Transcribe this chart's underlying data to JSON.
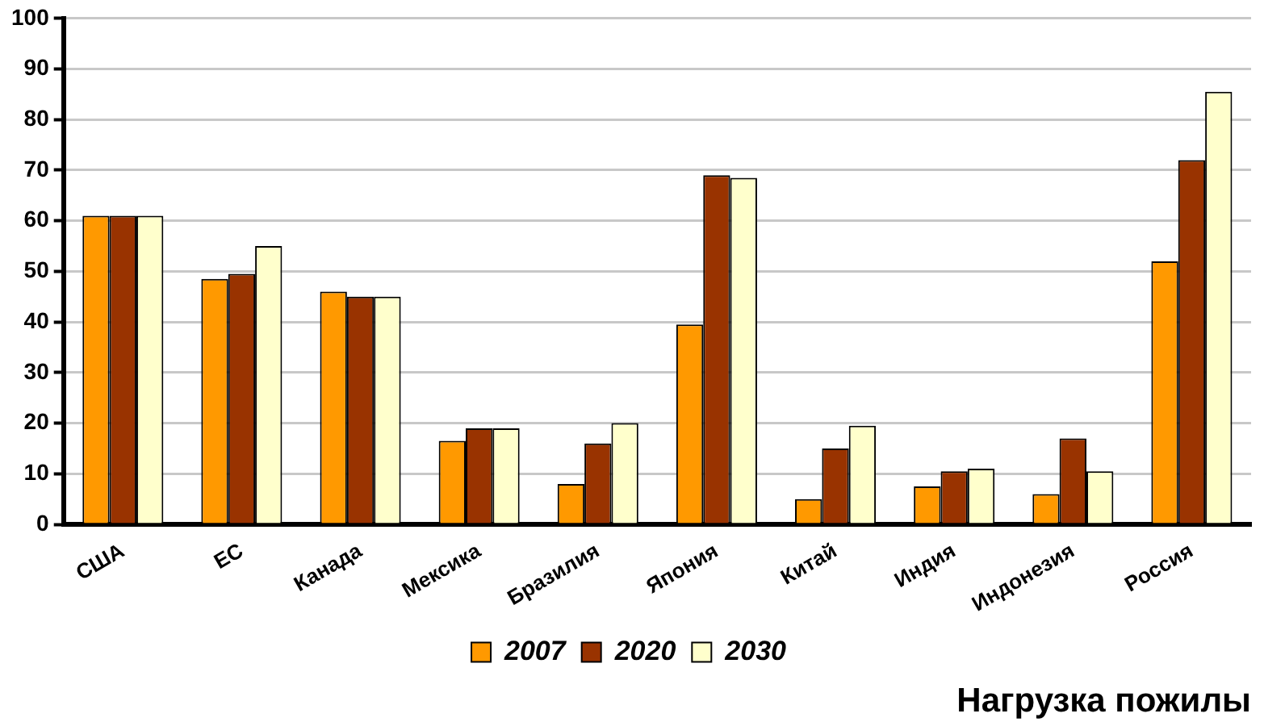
{
  "chart_data": {
    "type": "bar",
    "title": "Нагрузка пожилы",
    "categories": [
      "США",
      "ЕС",
      "Канада",
      "Мексика",
      "Бразилия",
      "Япония",
      "Китай",
      "Индия",
      "Индонезия",
      "Россия"
    ],
    "series": [
      {
        "name": "2007",
        "color": "#ff9900",
        "values": [
          61,
          48.5,
          46,
          16.5,
          8,
          39.5,
          5,
          7.5,
          6,
          52
        ]
      },
      {
        "name": "2020",
        "color": "#993300",
        "values": [
          61,
          49.5,
          45,
          19,
          16,
          69,
          15,
          10.5,
          17,
          72
        ]
      },
      {
        "name": "2030",
        "color": "#ffffcc",
        "values": [
          61,
          55,
          45,
          19,
          20,
          68.5,
          19.5,
          11,
          10.5,
          85.5
        ]
      }
    ],
    "ylim": [
      0,
      100
    ],
    "yticks": [
      0,
      10,
      20,
      30,
      40,
      50,
      60,
      70,
      80,
      90,
      100
    ],
    "grid": "y",
    "legend": "bottom"
  }
}
